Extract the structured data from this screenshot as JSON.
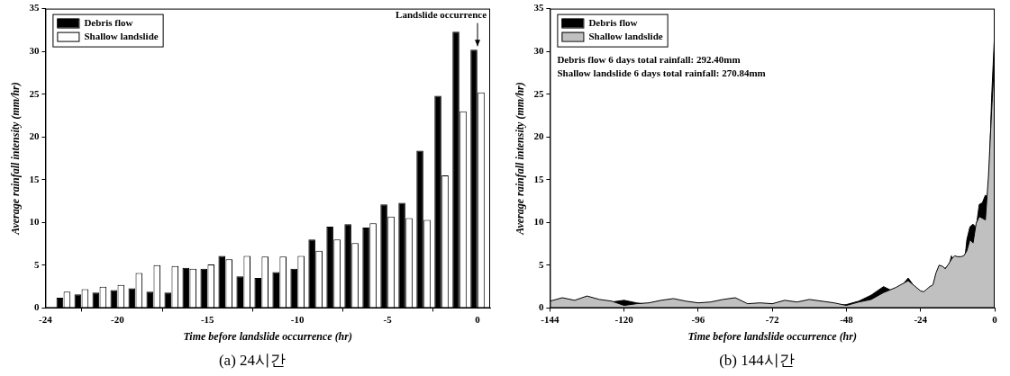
{
  "chart_data": [
    {
      "type": "bar",
      "title": "(a) 24시간",
      "x_label": "Time before landslide occurrence (hr)",
      "y_label": "Average rainfall intensity (mm/hr)",
      "x": [
        -23,
        -22,
        -21,
        -20,
        -19,
        -18,
        -17,
        -16,
        -15,
        -14,
        -13,
        -12,
        -11,
        -10,
        -9,
        -8,
        -7,
        -6,
        -5,
        -4,
        -3,
        -2,
        -1,
        0
      ],
      "series": [
        {
          "name": "Debris flow",
          "color": "#000000",
          "values": [
            1.2,
            1.6,
            1.8,
            2.1,
            2.3,
            1.9,
            1.8,
            4.7,
            4.6,
            6.1,
            3.7,
            3.5,
            4.2,
            4.6,
            8.0,
            9.5,
            9.8,
            9.4,
            12.1,
            12.3,
            18.4,
            24.8,
            32.3,
            30.2
          ]
        },
        {
          "name": "Shallow landslide",
          "color": "#ffffff",
          "values": [
            1.9,
            2.2,
            2.5,
            2.7,
            4.1,
            5.0,
            4.9,
            4.6,
            5.1,
            5.7,
            6.1,
            6.0,
            6.0,
            6.1,
            6.7,
            8.0,
            7.6,
            9.9,
            10.7,
            10.5,
            10.3,
            15.5,
            23.0,
            25.2
          ]
        }
      ],
      "xlim": [
        -24,
        0.7
      ],
      "xticks": [
        -24,
        -20,
        -15,
        -10,
        -5,
        0
      ],
      "ylim": [
        0,
        35
      ],
      "yticks": [
        0,
        5,
        10,
        15,
        20,
        25,
        30,
        35
      ],
      "grid": false,
      "legend": "upper left",
      "annotations": [
        {
          "text": "Landslide occurrence",
          "x": 0
        }
      ]
    },
    {
      "type": "area",
      "title": "(b) 144시간",
      "x_label": "Time before landslide occurrence (hr)",
      "y_label": "Average rainfall intensity (mm/hr)",
      "x": [
        -144,
        -140,
        -136,
        -132,
        -128,
        -124,
        -120,
        -116,
        -112,
        -108,
        -104,
        -100,
        -96,
        -92,
        -88,
        -84,
        -80,
        -76,
        -72,
        -68,
        -64,
        -60,
        -56,
        -52,
        -48,
        -44,
        -40,
        -36,
        -32,
        -28,
        -24,
        -23,
        -22,
        -21,
        -20,
        -19,
        -18,
        -17,
        -16,
        -15,
        -14,
        -13,
        -12,
        -11,
        -10,
        -9,
        -8,
        -7,
        -6,
        -5,
        -4,
        -3,
        -2,
        -1,
        0
      ],
      "series": [
        {
          "name": "Debris flow",
          "color": "#000000",
          "values": [
            0.1,
            0.2,
            0.3,
            0.3,
            0.5,
            0.7,
            0.9,
            0.6,
            0.4,
            0.2,
            0.3,
            0.5,
            0.4,
            0.5,
            0.3,
            0.2,
            0.4,
            0.3,
            0.5,
            0.3,
            0.2,
            0.4,
            0.3,
            0.2,
            0.4,
            0.8,
            1.5,
            2.5,
            1.8,
            3.5,
            1.5,
            1.2,
            1.6,
            1.8,
            2.1,
            2.3,
            1.9,
            1.8,
            4.7,
            4.6,
            6.1,
            3.7,
            3.5,
            4.2,
            4.6,
            8.0,
            9.5,
            9.8,
            9.4,
            12.1,
            12.3,
            13.2,
            12.8,
            24.5,
            32.4
          ]
        },
        {
          "name": "Shallow landslide",
          "color": "#c0c0c0",
          "values": [
            0.8,
            1.2,
            0.9,
            1.4,
            1.0,
            0.8,
            0.3,
            0.5,
            0.6,
            0.9,
            1.1,
            0.8,
            0.6,
            0.7,
            1.0,
            1.2,
            0.5,
            0.6,
            0.5,
            0.9,
            0.7,
            1.0,
            0.8,
            0.6,
            0.3,
            0.7,
            1.0,
            1.8,
            2.4,
            3.2,
            2.0,
            1.9,
            2.2,
            2.5,
            2.7,
            4.1,
            5.0,
            4.9,
            4.6,
            5.1,
            5.7,
            6.1,
            6.0,
            6.0,
            6.1,
            6.7,
            8.0,
            7.6,
            9.9,
            10.7,
            10.5,
            10.3,
            15.5,
            23.0,
            29.5
          ]
        }
      ],
      "xlim": [
        -144,
        0
      ],
      "xticks": [
        -144,
        -120,
        -96,
        -72,
        -48,
        -24,
        0
      ],
      "ylim": [
        0,
        35
      ],
      "yticks": [
        0,
        5,
        10,
        15,
        20,
        25,
        30,
        35
      ],
      "grid": false,
      "legend": "upper left",
      "annotations": [
        {
          "text": "Debris flow 6 days total rainfall: 292.40mm"
        },
        {
          "text": "Shallow landslide 6 days total rainfall: 270.84mm"
        }
      ]
    }
  ]
}
